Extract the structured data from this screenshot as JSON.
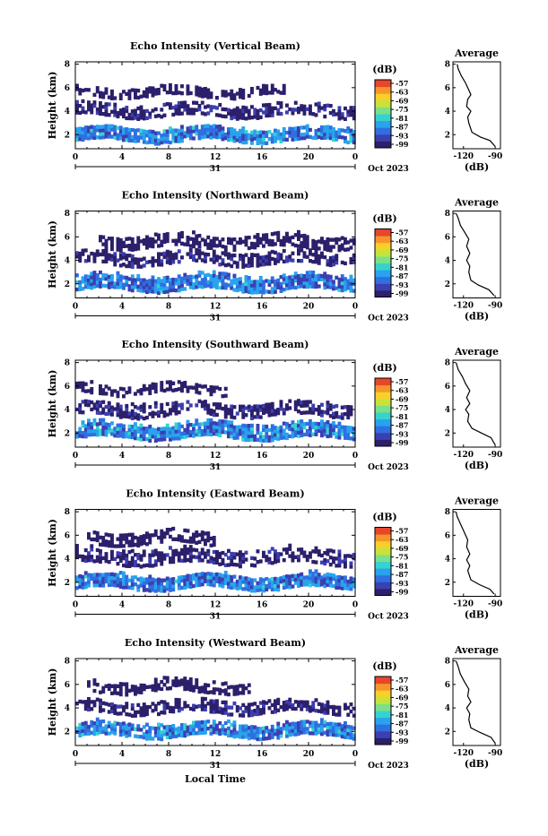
{
  "figure": {
    "date_label": "Oct 2023",
    "day_label": "31",
    "xlabel_bottom": "Local Time",
    "colorbar_unit": "(dB)",
    "colorbar_ticks": [
      "-57",
      "-63",
      "-69",
      "-75",
      "-81",
      "-87",
      "-93",
      "-99"
    ],
    "colorbar_colors": [
      "#2c1f6b",
      "#3b3fb0",
      "#2f6fe0",
      "#29a3ec",
      "#36d2d0",
      "#7be08a",
      "#c6e33c",
      "#f7d02a",
      "#f7952a",
      "#e6462c"
    ],
    "avg_title": "Average",
    "avg_xlabel": "(dB)",
    "avg_xticks": [
      "-120",
      "-90"
    ]
  },
  "chart_data": [
    {
      "type": "heatmap",
      "title": "Echo Intensity (Vertical Beam)",
      "ylabel": "Height (km)",
      "x_ticks": [
        "0",
        "4",
        "8",
        "12",
        "16",
        "20",
        "0"
      ],
      "x_range_hours": [
        0,
        24
      ],
      "y_ticks": [
        "2",
        "4",
        "6",
        "8"
      ],
      "ylim_km": [
        0.8,
        8.2
      ],
      "colorbar_range_db": [
        -99,
        -57
      ],
      "layers": [
        {
          "kind": "boundary",
          "hour_start": 0,
          "hour_end": 24,
          "base_km": 1.4,
          "top_km": 2.6,
          "intensity_db": -87
        },
        {
          "kind": "mid",
          "hour_start": 0,
          "hour_end": 24,
          "base_km": 3.5,
          "top_km": 4.6,
          "intensity_db": -96
        },
        {
          "kind": "upper",
          "hour_start": 0,
          "hour_end": 18,
          "base_km": 5.2,
          "top_km": 6.0,
          "intensity_db": -97
        }
      ],
      "average_profile": {
        "xlim_db": [
          -130,
          -85
        ],
        "ylim_km": [
          0.8,
          8.2
        ],
        "points": [
          [
            -90,
            1.0
          ],
          [
            -95,
            1.5
          ],
          [
            -104,
            1.8
          ],
          [
            -112,
            2.2
          ],
          [
            -115,
            3.0
          ],
          [
            -116,
            3.5
          ],
          [
            -113,
            4.0
          ],
          [
            -117,
            4.4
          ],
          [
            -116,
            5.0
          ],
          [
            -113,
            5.4
          ],
          [
            -115,
            5.8
          ],
          [
            -118,
            6.4
          ],
          [
            -122,
            7.0
          ],
          [
            -125,
            7.6
          ],
          [
            -126,
            8.0
          ]
        ]
      }
    },
    {
      "type": "heatmap",
      "title": "Echo Intensity (Northward Beam)",
      "ylabel": "Height (km)",
      "x_ticks": [
        "0",
        "4",
        "8",
        "12",
        "16",
        "20",
        "0"
      ],
      "x_range_hours": [
        0,
        24
      ],
      "y_ticks": [
        "2",
        "4",
        "6",
        "8"
      ],
      "ylim_km": [
        0.8,
        8.2
      ],
      "colorbar_range_db": [
        -99,
        -57
      ],
      "layers": [
        {
          "kind": "boundary",
          "hour_start": 0,
          "hour_end": 24,
          "base_km": 1.4,
          "top_km": 2.7,
          "intensity_db": -88
        },
        {
          "kind": "mid",
          "hour_start": 0,
          "hour_end": 24,
          "base_km": 3.6,
          "top_km": 4.7,
          "intensity_db": -96
        },
        {
          "kind": "upper",
          "hour_start": 2,
          "hour_end": 24,
          "base_km": 5.0,
          "top_km": 6.2,
          "intensity_db": -97
        }
      ],
      "average_profile": {
        "xlim_db": [
          -130,
          -85
        ],
        "ylim_km": [
          0.8,
          8.2
        ],
        "points": [
          [
            -91,
            1.0
          ],
          [
            -96,
            1.5
          ],
          [
            -106,
            1.9
          ],
          [
            -113,
            2.3
          ],
          [
            -115,
            3.0
          ],
          [
            -114,
            3.5
          ],
          [
            -117,
            4.0
          ],
          [
            -114,
            4.6
          ],
          [
            -117,
            5.2
          ],
          [
            -115,
            5.8
          ],
          [
            -119,
            6.4
          ],
          [
            -123,
            7.0
          ],
          [
            -125,
            7.6
          ],
          [
            -127,
            8.0
          ]
        ]
      }
    },
    {
      "type": "heatmap",
      "title": "Echo Intensity (Southward Beam)",
      "ylabel": "Height (km)",
      "x_ticks": [
        "0",
        "4",
        "8",
        "12",
        "16",
        "20",
        "0"
      ],
      "x_range_hours": [
        0,
        24
      ],
      "y_ticks": [
        "2",
        "4",
        "6",
        "8"
      ],
      "ylim_km": [
        0.8,
        8.2
      ],
      "colorbar_range_db": [
        -99,
        -57
      ],
      "layers": [
        {
          "kind": "boundary",
          "hour_start": 0,
          "hour_end": 24,
          "base_km": 1.5,
          "top_km": 2.8,
          "intensity_db": -87
        },
        {
          "kind": "mid",
          "hour_start": 0,
          "hour_end": 24,
          "base_km": 3.4,
          "top_km": 4.6,
          "intensity_db": -96
        },
        {
          "kind": "upper",
          "hour_start": 0,
          "hour_end": 13,
          "base_km": 5.3,
          "top_km": 6.2,
          "intensity_db": -97
        }
      ],
      "average_profile": {
        "xlim_db": [
          -130,
          -85
        ],
        "ylim_km": [
          0.8,
          8.2
        ],
        "points": [
          [
            -90,
            1.0
          ],
          [
            -94,
            1.6
          ],
          [
            -103,
            2.0
          ],
          [
            -112,
            2.4
          ],
          [
            -116,
            3.0
          ],
          [
            -115,
            3.6
          ],
          [
            -118,
            4.0
          ],
          [
            -114,
            4.5
          ],
          [
            -117,
            5.0
          ],
          [
            -114,
            5.6
          ],
          [
            -118,
            6.2
          ],
          [
            -121,
            6.8
          ],
          [
            -125,
            7.4
          ],
          [
            -127,
            8.0
          ]
        ]
      }
    },
    {
      "type": "heatmap",
      "title": "Echo Intensity (Eastward Beam)",
      "ylabel": "Height (km)",
      "x_ticks": [
        "0",
        "4",
        "8",
        "12",
        "16",
        "20",
        "0"
      ],
      "x_range_hours": [
        0,
        24
      ],
      "y_ticks": [
        "2",
        "4",
        "6",
        "8"
      ],
      "ylim_km": [
        0.8,
        8.2
      ],
      "colorbar_range_db": [
        -99,
        -57
      ],
      "layers": [
        {
          "kind": "boundary",
          "hour_start": 0,
          "hour_end": 24,
          "base_km": 1.4,
          "top_km": 2.6,
          "intensity_db": -88
        },
        {
          "kind": "mid",
          "hour_start": 0,
          "hour_end": 24,
          "base_km": 3.5,
          "top_km": 4.8,
          "intensity_db": -96
        },
        {
          "kind": "upper",
          "hour_start": 1,
          "hour_end": 12,
          "base_km": 5.2,
          "top_km": 6.3,
          "intensity_db": -97
        }
      ],
      "average_profile": {
        "xlim_db": [
          -130,
          -85
        ],
        "ylim_km": [
          0.8,
          8.2
        ],
        "points": [
          [
            -91,
            1.0
          ],
          [
            -95,
            1.4
          ],
          [
            -105,
            1.8
          ],
          [
            -113,
            2.2
          ],
          [
            -116,
            3.0
          ],
          [
            -114,
            3.4
          ],
          [
            -117,
            3.9
          ],
          [
            -114,
            4.4
          ],
          [
            -117,
            5.0
          ],
          [
            -116,
            5.6
          ],
          [
            -120,
            6.4
          ],
          [
            -123,
            7.0
          ],
          [
            -126,
            7.6
          ],
          [
            -127,
            8.0
          ]
        ]
      }
    },
    {
      "type": "heatmap",
      "title": "Echo Intensity (Westward Beam)",
      "ylabel": "Height (km)",
      "x_ticks": [
        "0",
        "4",
        "8",
        "12",
        "16",
        "20",
        "0"
      ],
      "x_range_hours": [
        0,
        24
      ],
      "y_ticks": [
        "2",
        "4",
        "6",
        "8"
      ],
      "ylim_km": [
        0.8,
        8.2
      ],
      "colorbar_range_db": [
        -99,
        -57
      ],
      "layers": [
        {
          "kind": "boundary",
          "hour_start": 0,
          "hour_end": 24,
          "base_km": 1.5,
          "top_km": 2.7,
          "intensity_db": -87
        },
        {
          "kind": "mid",
          "hour_start": 0,
          "hour_end": 24,
          "base_km": 3.5,
          "top_km": 4.6,
          "intensity_db": -96
        },
        {
          "kind": "upper",
          "hour_start": 1,
          "hour_end": 15,
          "base_km": 5.3,
          "top_km": 6.3,
          "intensity_db": -97
        }
      ],
      "average_profile": {
        "xlim_db": [
          -130,
          -85
        ],
        "ylim_km": [
          0.8,
          8.2
        ],
        "points": [
          [
            -90,
            1.0
          ],
          [
            -94,
            1.5
          ],
          [
            -104,
            1.9
          ],
          [
            -113,
            2.3
          ],
          [
            -115,
            3.0
          ],
          [
            -114,
            3.5
          ],
          [
            -117,
            4.0
          ],
          [
            -113,
            4.5
          ],
          [
            -116,
            5.0
          ],
          [
            -115,
            5.6
          ],
          [
            -119,
            6.2
          ],
          [
            -123,
            6.9
          ],
          [
            -125,
            7.5
          ],
          [
            -127,
            8.0
          ]
        ]
      }
    }
  ]
}
